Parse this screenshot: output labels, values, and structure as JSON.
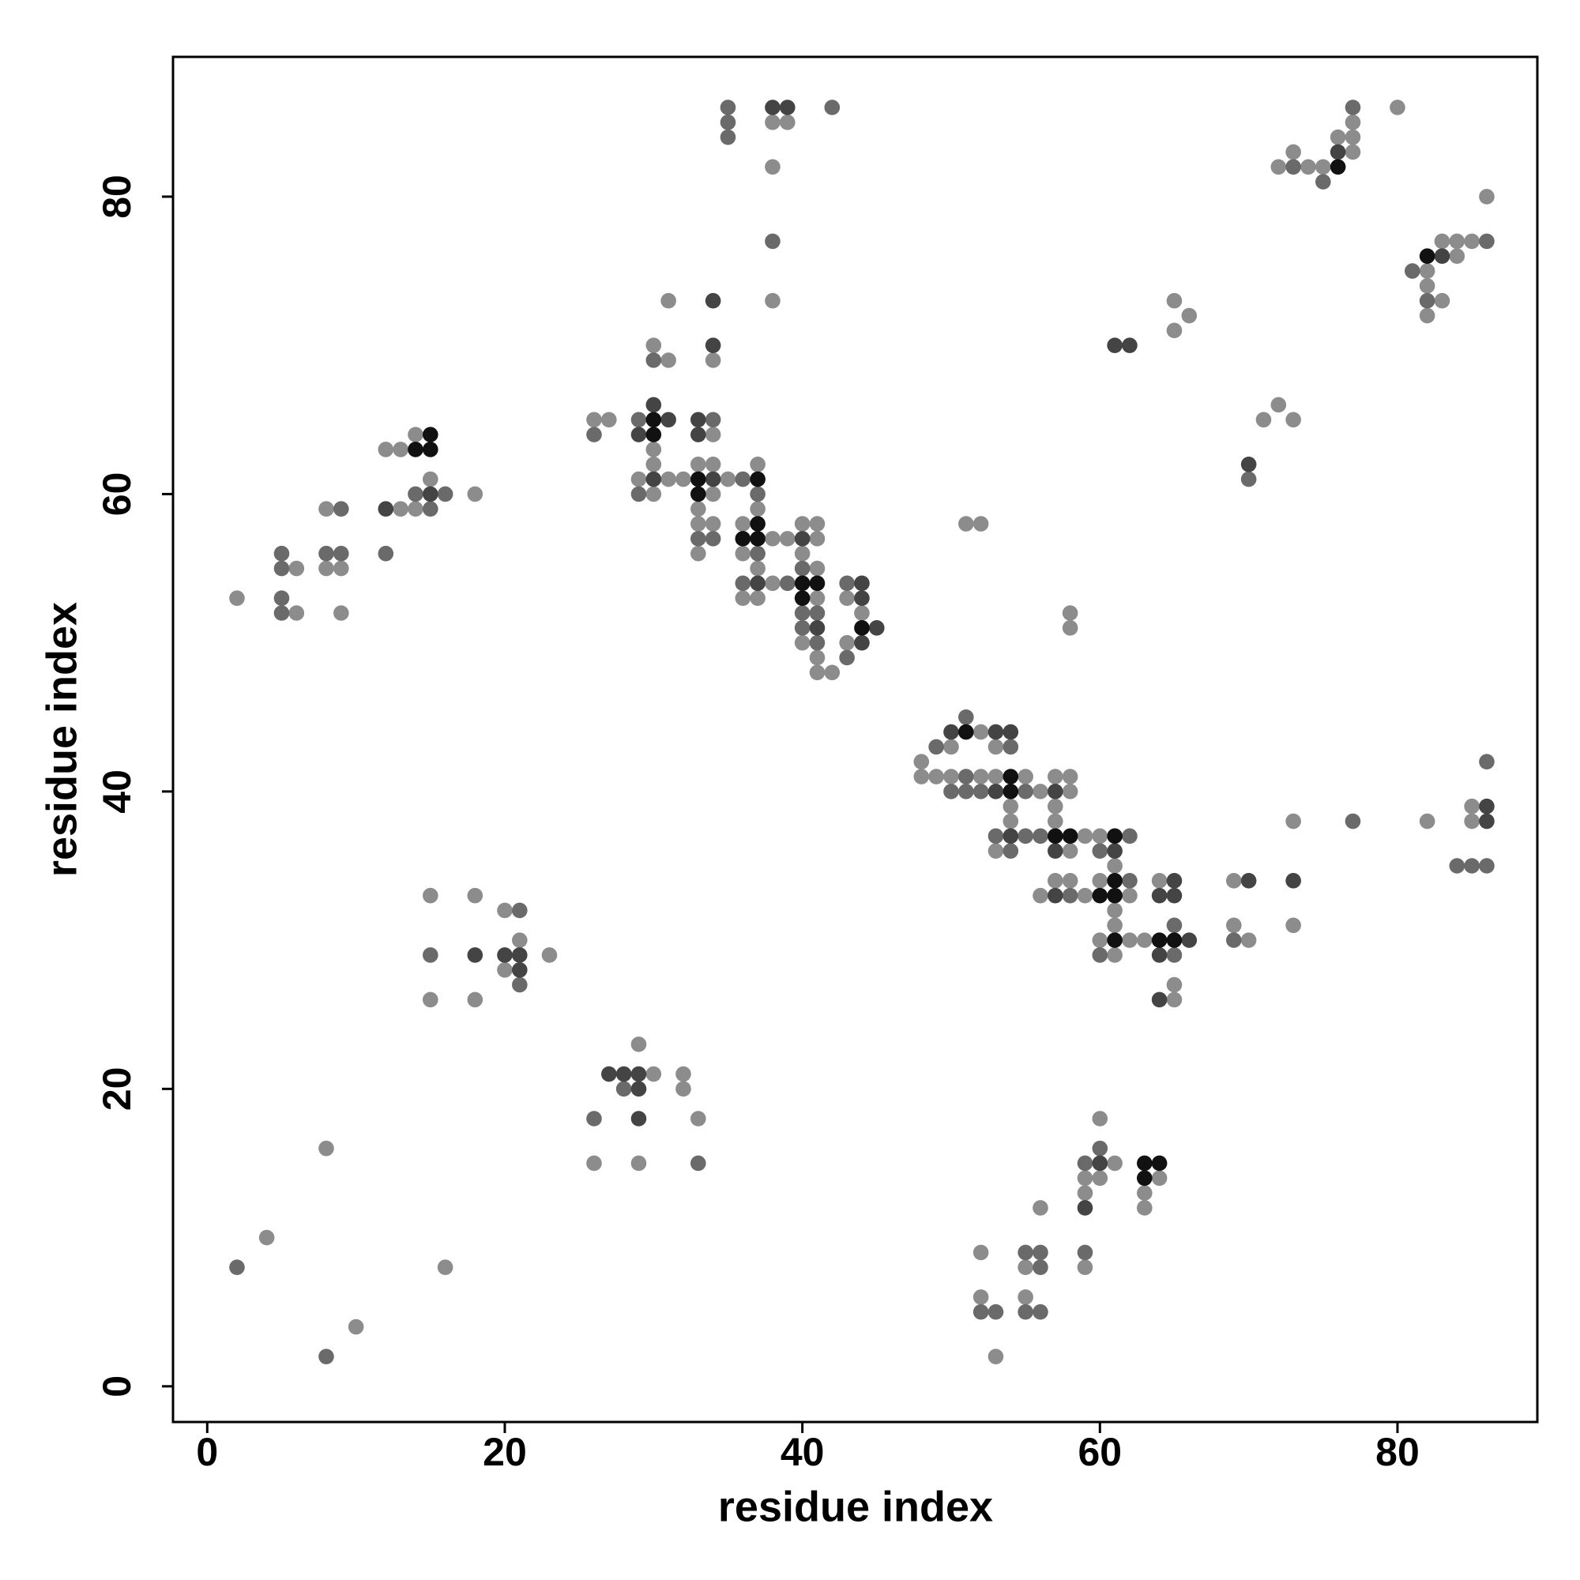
{
  "chart_data": {
    "type": "scatter",
    "x_label": "residue index",
    "y_label": "residue index",
    "xlim": [
      -2.3,
      89.4
    ],
    "ylim": [
      -2.4,
      89.4
    ],
    "xticks": [
      0,
      20,
      40,
      60,
      80
    ],
    "yticks": [
      0,
      20,
      40,
      60,
      80
    ],
    "series": [
      {
        "color": "#8c8c8c",
        "x": [
          38,
          39,
          38,
          38,
          80,
          77,
          76,
          77,
          77,
          75,
          74,
          72,
          73,
          86,
          82,
          83,
          84,
          85,
          84,
          82,
          82,
          83,
          65,
          66,
          65,
          72,
          71,
          73,
          31,
          30,
          31,
          34,
          26,
          27,
          30,
          30,
          29,
          31,
          32,
          30,
          34,
          33,
          34,
          35,
          34,
          33,
          33,
          34,
          33,
          37,
          37,
          36,
          38,
          39,
          36,
          37,
          38,
          36,
          37,
          40,
          41,
          41,
          40,
          41,
          41,
          40,
          41,
          41,
          42,
          43,
          44,
          43,
          2,
          6,
          6,
          8,
          8,
          9,
          9,
          12,
          13,
          14,
          13,
          14,
          15,
          18,
          51,
          52,
          58,
          58,
          52,
          50,
          53,
          48,
          48,
          49,
          50,
          52,
          53,
          55,
          57,
          58,
          56,
          58,
          54,
          57,
          54,
          57,
          59,
          60,
          53,
          58,
          61,
          57,
          58,
          60,
          56,
          59,
          62,
          61,
          61,
          60,
          62,
          63,
          61,
          64,
          65,
          65,
          69,
          69,
          70,
          73,
          73,
          82,
          85,
          85,
          15,
          18,
          20,
          21,
          23,
          20,
          15,
          18,
          29,
          30,
          32,
          32,
          33,
          26,
          29,
          8,
          4,
          16,
          10,
          60,
          61,
          59,
          60,
          59,
          64,
          63,
          63,
          56,
          55,
          59,
          52,
          52,
          55,
          53
        ],
        "y": [
          85,
          85,
          82,
          73,
          86,
          85,
          84,
          84,
          83,
          82,
          82,
          82,
          83,
          80,
          75,
          77,
          77,
          77,
          76,
          74,
          72,
          73,
          73,
          72,
          71,
          66,
          65,
          65,
          73,
          70,
          69,
          69,
          65,
          65,
          63,
          62,
          61,
          61,
          61,
          60,
          64,
          62,
          62,
          61,
          60,
          59,
          58,
          58,
          56,
          62,
          59,
          58,
          57,
          57,
          56,
          55,
          54,
          53,
          53,
          58,
          58,
          57,
          56,
          55,
          53,
          50,
          49,
          48,
          48,
          53,
          52,
          50,
          53,
          55,
          52,
          59,
          55,
          55,
          52,
          63,
          63,
          64,
          59,
          59,
          61,
          60,
          58,
          58,
          52,
          51,
          44,
          43,
          43,
          42,
          41,
          41,
          41,
          41,
          41,
          41,
          41,
          41,
          40,
          40,
          39,
          39,
          38,
          38,
          37,
          37,
          36,
          36,
          35,
          34,
          34,
          34,
          33,
          33,
          33,
          32,
          31,
          30,
          30,
          30,
          29,
          34,
          27,
          26,
          34,
          31,
          30,
          38,
          31,
          38,
          39,
          38,
          33,
          33,
          32,
          30,
          29,
          28,
          26,
          26,
          23,
          21,
          21,
          20,
          18,
          15,
          15,
          16,
          10,
          8,
          4,
          18,
          15,
          14,
          14,
          13,
          14,
          13,
          12,
          12,
          8,
          8,
          9,
          6,
          6,
          2
        ]
      },
      {
        "color": "#6a6a6a",
        "x": [
          35,
          35,
          35,
          42,
          38,
          77,
          73,
          75,
          81,
          86,
          82,
          70,
          30,
          26,
          29,
          34,
          29,
          36,
          37,
          33,
          34,
          37,
          36,
          39,
          40,
          40,
          41,
          40,
          41,
          43,
          43,
          5,
          5,
          5,
          5,
          9,
          8,
          9,
          15,
          14,
          16,
          12,
          51,
          49,
          54,
          51,
          50,
          51,
          52,
          55,
          53,
          55,
          56,
          62,
          54,
          60,
          62,
          58,
          60,
          65,
          65,
          69,
          77,
          86,
          84,
          85,
          86,
          21,
          15,
          21,
          28,
          26,
          33,
          2,
          8,
          60,
          59,
          55,
          56,
          56,
          59,
          52,
          53,
          55,
          56
        ],
        "y": [
          86,
          85,
          84,
          86,
          77,
          86,
          82,
          81,
          75,
          77,
          73,
          61,
          69,
          64,
          65,
          65,
          60,
          61,
          60,
          57,
          57,
          56,
          54,
          54,
          55,
          52,
          52,
          51,
          50,
          54,
          49,
          56,
          55,
          53,
          52,
          59,
          56,
          56,
          59,
          60,
          60,
          56,
          45,
          43,
          43,
          41,
          40,
          40,
          40,
          40,
          37,
          37,
          37,
          37,
          36,
          36,
          34,
          33,
          29,
          29,
          31,
          30,
          38,
          42,
          35,
          35,
          35,
          32,
          29,
          27,
          20,
          18,
          15,
          8,
          2,
          16,
          15,
          9,
          9,
          8,
          9,
          5,
          5,
          5,
          5
        ]
      },
      {
        "color": "#444444",
        "x": [
          38,
          39,
          34,
          61,
          62,
          76,
          83,
          70,
          34,
          30,
          29,
          31,
          30,
          33,
          33,
          34,
          37,
          40,
          41,
          44,
          44,
          45,
          44,
          12,
          15,
          50,
          53,
          54,
          53,
          57,
          54,
          57,
          61,
          57,
          66,
          64,
          65,
          64,
          65,
          64,
          70,
          73,
          86,
          86,
          18,
          20,
          21,
          21,
          27,
          28,
          29,
          29,
          29,
          60,
          59
        ],
        "y": [
          86,
          86,
          73,
          70,
          70,
          83,
          76,
          62,
          70,
          66,
          64,
          65,
          61,
          65,
          64,
          61,
          54,
          57,
          51,
          54,
          53,
          51,
          50,
          59,
          60,
          44,
          44,
          44,
          40,
          40,
          37,
          36,
          36,
          33,
          30,
          29,
          34,
          33,
          33,
          26,
          34,
          34,
          39,
          38,
          29,
          29,
          29,
          28,
          21,
          21,
          21,
          20,
          18,
          15,
          12
        ]
      },
      {
        "color": "#111111",
        "x": [
          30,
          30,
          33,
          33,
          37,
          37,
          36,
          37,
          40,
          41,
          40,
          44,
          14,
          15,
          15,
          51,
          54,
          54,
          57,
          58,
          61,
          61,
          60,
          61,
          61,
          64,
          65,
          76,
          82,
          63,
          64,
          63
        ],
        "y": [
          65,
          64,
          61,
          60,
          61,
          58,
          57,
          57,
          54,
          54,
          53,
          51,
          63,
          63,
          64,
          44,
          41,
          40,
          37,
          37,
          37,
          34,
          33,
          33,
          30,
          30,
          30,
          82,
          76,
          15,
          15,
          14
        ]
      }
    ]
  }
}
